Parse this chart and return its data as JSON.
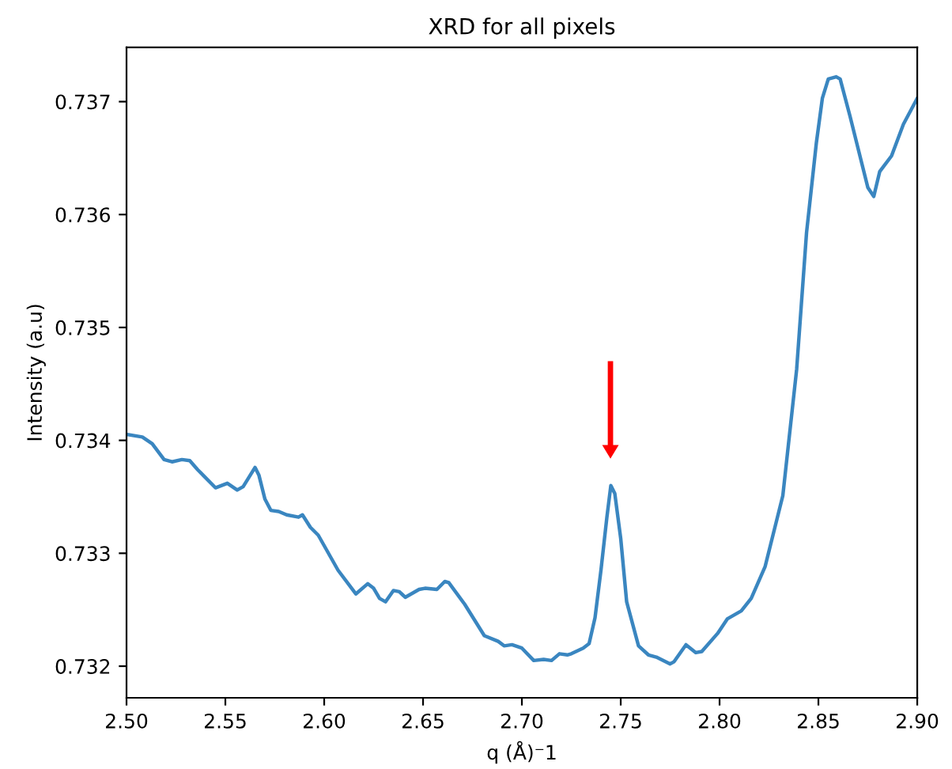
{
  "chart_data": {
    "type": "line",
    "title": "XRD for all pixels",
    "xlabel": "q (Å)⁻1",
    "ylabel": "Intensity (a.u)",
    "xlim": [
      2.5,
      2.9
    ],
    "xticks": [
      {
        "value": 2.5,
        "label": "2.50"
      },
      {
        "value": 2.55,
        "label": "2.55"
      },
      {
        "value": 2.6,
        "label": "2.60"
      },
      {
        "value": 2.65,
        "label": "2.65"
      },
      {
        "value": 2.7,
        "label": "2.70"
      },
      {
        "value": 2.75,
        "label": "2.75"
      },
      {
        "value": 2.8,
        "label": "2.80"
      },
      {
        "value": 2.85,
        "label": "2.85"
      },
      {
        "value": 2.9,
        "label": "2.90"
      }
    ],
    "ylim": [
      0.73172,
      0.73748
    ],
    "yticks": [
      0.732,
      0.733,
      0.734,
      0.735,
      0.736,
      0.737
    ],
    "grid": false,
    "legend": false,
    "marker": "none",
    "line_style": "solid",
    "series": [
      {
        "color": "#3a86c0",
        "x": [
          2.501,
          2.508,
          2.513,
          2.519,
          2.523,
          2.528,
          2.532,
          2.536,
          2.545,
          2.551,
          2.556,
          2.559,
          2.565,
          2.567,
          2.57,
          2.573,
          2.577,
          2.581,
          2.587,
          2.589,
          2.593,
          2.597,
          2.607,
          2.616,
          2.622,
          2.625,
          2.628,
          2.631,
          2.635,
          2.638,
          2.641,
          2.648,
          2.651,
          2.657,
          2.661,
          2.663,
          2.671,
          2.681,
          2.688,
          2.691,
          2.695,
          2.7,
          2.706,
          2.711,
          2.715,
          2.719,
          2.723,
          2.725,
          2.731,
          2.734,
          2.737,
          2.74,
          2.743,
          2.745,
          2.747,
          2.75,
          2.753,
          2.759,
          2.764,
          2.768,
          2.775,
          2.777,
          2.783,
          2.788,
          2.791,
          2.799,
          2.804,
          2.811,
          2.816,
          2.823,
          2.832,
          2.839,
          2.844,
          2.849,
          2.852,
          2.855,
          2.859,
          2.861,
          2.866,
          2.872,
          2.875,
          2.878,
          2.881,
          2.887,
          2.893,
          2.9
        ],
        "values": [
          0.73405,
          0.73403,
          0.73397,
          0.73383,
          0.73381,
          0.73383,
          0.73382,
          0.73374,
          0.73358,
          0.73362,
          0.73356,
          0.73359,
          0.73376,
          0.73369,
          0.73348,
          0.73338,
          0.73337,
          0.73334,
          0.73332,
          0.73334,
          0.73323,
          0.73316,
          0.73285,
          0.73264,
          0.73273,
          0.73269,
          0.7326,
          0.73257,
          0.73267,
          0.73266,
          0.73261,
          0.73268,
          0.73269,
          0.73268,
          0.73275,
          0.73274,
          0.73255,
          0.73227,
          0.73222,
          0.73218,
          0.73219,
          0.73216,
          0.73205,
          0.73206,
          0.73205,
          0.73211,
          0.7321,
          0.73211,
          0.73216,
          0.7322,
          0.73243,
          0.73285,
          0.73332,
          0.7336,
          0.73353,
          0.73313,
          0.73257,
          0.73218,
          0.7321,
          0.73208,
          0.73202,
          0.73204,
          0.73219,
          0.73212,
          0.73213,
          0.73229,
          0.73242,
          0.73249,
          0.7326,
          0.73288,
          0.73351,
          0.73463,
          0.73584,
          0.73664,
          0.73703,
          0.7372,
          0.73722,
          0.7372,
          0.73687,
          0.73645,
          0.73624,
          0.73616,
          0.73638,
          0.73652,
          0.7368,
          0.73703
        ]
      }
    ]
  }
}
